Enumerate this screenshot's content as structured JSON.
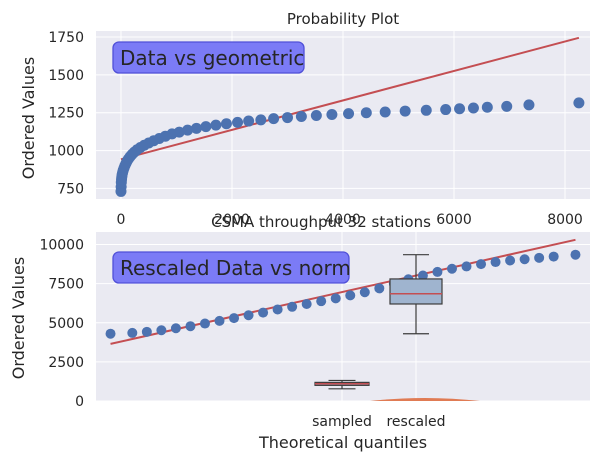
{
  "chart_data": [
    {
      "type": "scatter",
      "panel": "top",
      "title": "Probability Plot",
      "xlabel": "",
      "ylabel": "Ordered Values",
      "annotation": "Data vs geometric",
      "xlim": [
        -450,
        8450
      ],
      "ylim": [
        680,
        1790
      ],
      "xticks": [
        0,
        2000,
        4000,
        6000,
        8000
      ],
      "xticklabels": [
        "0",
        "2000",
        "4000",
        "6000",
        "8000"
      ],
      "yticks": [
        750,
        1000,
        1250,
        1500,
        1750
      ],
      "yticklabels": [
        "750",
        "1000",
        "1250",
        "1500",
        "1750"
      ],
      "grid": true,
      "colors": {
        "points": "#4c72b0",
        "fit": "#c44e52",
        "annotation_fill": "#7b7bf6",
        "annotation_edge": "#5050d8",
        "bg": "#eaeaf2"
      },
      "fit_line": {
        "x": [
          0,
          8250
        ],
        "y": [
          942,
          1745
        ]
      },
      "points": {
        "x": [
          0,
          3,
          6,
          10,
          15,
          20,
          30,
          40,
          55,
          70,
          90,
          110,
          135,
          165,
          200,
          240,
          290,
          350,
          420,
          500,
          590,
          690,
          800,
          920,
          1050,
          1200,
          1360,
          1530,
          1710,
          1900,
          2100,
          2300,
          2520,
          2750,
          3000,
          3250,
          3520,
          3800,
          4100,
          4420,
          4760,
          5120,
          5500,
          5850,
          6100,
          6350,
          6600,
          6950,
          7350,
          8250
        ],
        "y": [
          730,
          760,
          790,
          810,
          825,
          840,
          855,
          870,
          885,
          900,
          915,
          930,
          945,
          960,
          975,
          990,
          1005,
          1020,
          1035,
          1050,
          1065,
          1080,
          1095,
          1110,
          1122,
          1135,
          1147,
          1158,
          1168,
          1177,
          1186,
          1195,
          1203,
          1211,
          1218,
          1225,
          1232,
          1238,
          1244,
          1250,
          1255,
          1261,
          1266,
          1271,
          1276,
          1281,
          1286,
          1292,
          1302,
          1315
        ]
      }
    },
    {
      "type": "scatter",
      "panel": "bottom",
      "title": "CSMA throughput 32 stations",
      "xlabel": "Theoretical quantiles",
      "ylabel": "Ordered Values",
      "annotation": "Rescaled Data vs norm",
      "xlim": [
        -3.4,
        3.4
      ],
      "ylim": [
        0,
        10800
      ],
      "yticks": [
        0,
        2500,
        5000,
        7500,
        10000
      ],
      "yticklabels": [
        "0",
        "2500",
        "5000",
        "7500",
        "10000"
      ],
      "categories": [
        "sampled",
        "rescaled"
      ],
      "grid": true,
      "colors": {
        "points": "#4c72b0",
        "fit": "#c44e52",
        "box_fill": "#9fb4cf",
        "median": "#c44e52",
        "annotation_fill": "#7b7bf6",
        "annotation_edge": "#5050d8",
        "bg": "#eaeaf2"
      },
      "fit_line": {
        "x": [
          -3.2,
          3.2
        ],
        "y": [
          3650,
          10300
        ]
      },
      "points": {
        "x": [
          -3.2,
          -2.9,
          -2.7,
          -2.5,
          -2.3,
          -2.1,
          -1.9,
          -1.7,
          -1.5,
          -1.3,
          -1.1,
          -0.9,
          -0.7,
          -0.5,
          -0.3,
          -0.1,
          0.1,
          0.3,
          0.5,
          0.7,
          0.9,
          1.1,
          1.3,
          1.5,
          1.7,
          1.9,
          2.1,
          2.3,
          2.5,
          2.7,
          2.9,
          3.2
        ],
        "y": [
          4300,
          4350,
          4420,
          4520,
          4650,
          4780,
          4950,
          5120,
          5300,
          5480,
          5650,
          5850,
          6020,
          6200,
          6380,
          6560,
          6750,
          6950,
          7200,
          7500,
          7780,
          8020,
          8250,
          8450,
          8600,
          8750,
          8880,
          8980,
          9060,
          9150,
          9230,
          9350
        ]
      },
      "boxplots": [
        {
          "name": "sampled",
          "whisker_low": 780,
          "q1": 1000,
          "median": 1100,
          "q3": 1190,
          "whisker_high": 1315
        },
        {
          "name": "rescaled",
          "whisker_low": 4300,
          "q1": 6200,
          "median": 6850,
          "q3": 7800,
          "whisker_high": 9350
        }
      ]
    }
  ]
}
